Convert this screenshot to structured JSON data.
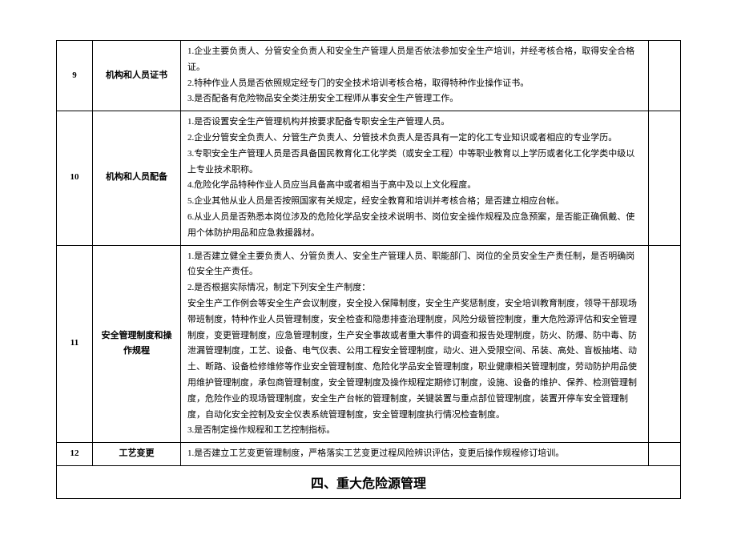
{
  "rows": [
    {
      "num": "9",
      "name": "机构和人员证书",
      "content": [
        "1.企业主要负责人、分管安全负责人和安全生产管理人员是否依法参加安全生产培训，并经考核合格，取得安全合格证。",
        "2.特种作业人员是否依照规定经专门的安全技术培训考核合格，取得特种作业操作证书。",
        "3.是否配备有危险物品安全类注册安全工程师从事安全生产管理工作。"
      ]
    },
    {
      "num": "10",
      "name": "机构和人员配备",
      "content": [
        "1.是否设置安全生产管理机构并按要求配备专职安全生产管理人员。",
        "2.企业分管安全负责人、分管生产负责人、分管技术负责人是否具有一定的化工专业知识或者相应的专业学历。",
        "3.专职安全生产管理人员是否具备国民教育化工化学类（或安全工程）中等职业教育以上学历或者化工化学类中级以上专业技术职称。",
        "4.危险化学品特种作业人员应当具备高中或者相当于高中及以上文化程度。",
        "5.企业其他从业人员是否按照国家有关规定，经安全教育和培训并考核合格；是否建立相应台帐。",
        "6.从业人员是否熟悉本岗位涉及的危险化学品安全技术说明书、岗位安全操作规程及应急预案，是否能正确佩戴、使用个体防护用品和应急救援器材。"
      ]
    },
    {
      "num": "11",
      "name": "安全管理制度和操作规程",
      "content": [
        "1.是否建立健全主要负责人、分管负责人、安全生产管理人员、职能部门、岗位的全员安全生产责任制，是否明确岗位安全生产责任。",
        "2.是否根据实际情况，制定下列安全生产制度：",
        "安全生产工作例会等安全生产会议制度，安全投入保障制度，安全生产奖惩制度，安全培训教育制度，领导干部现场带班制度，特种作业人员管理制度，安全检查和隐患排查治理制度，风险分级管控制度，重大危险源评估和安全管理制度，变更管理制度，应急管理制度，生产安全事故或者重大事件的调查和报告处理制度，防火、防爆、防中毒、防泄漏管理制度，工艺、设备、电气仪表、公用工程安全管理制度，动火、进入受限空间、吊装、高处、盲板抽堵、动土、断路、设备检修维修等作业安全管理制度、危险化学品安全管理制度，职业健康相关管理制度，劳动防护用品使用维护管理制度，承包商管理制度，安全管理制度及操作规程定期修订制度，设施、设备的维护、保养、检测管理制度，危险作业的现场管理制度，安全生产台帐的管理制度，关键装置与重点部位管理制度，装置开停车安全管理制度，自动化安全控制及安全仪表系统管理制度，安全管理制度执行情况检查制度。",
        "3.是否制定操作规程和工艺控制指标。"
      ]
    },
    {
      "num": "12",
      "name": "工艺变更",
      "content": [
        "1.是否建立工艺变更管理制度，严格落实工艺变更过程风险辨识评估，变更后操作规程修订培训。"
      ]
    }
  ],
  "section_title": "四、重大危险源管理"
}
